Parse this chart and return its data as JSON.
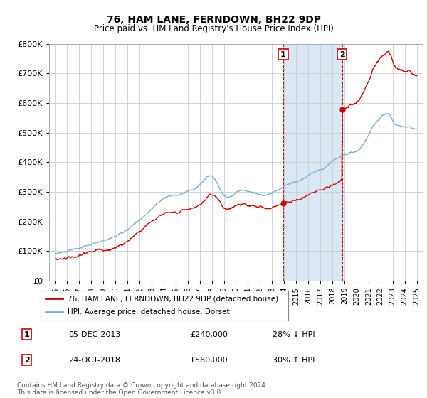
{
  "title": "76, HAM LANE, FERNDOWN, BH22 9DP",
  "subtitle": "Price paid vs. HM Land Registry's House Price Index (HPI)",
  "footer": "Contains HM Land Registry data © Crown copyright and database right 2024.\nThis data is licensed under the Open Government Licence v3.0.",
  "legend_line1": "76, HAM LANE, FERNDOWN, BH22 9DP (detached house)",
  "legend_line2": "HPI: Average price, detached house, Dorset",
  "sale1_date": "05-DEC-2013",
  "sale1_price": 240000,
  "sale1_hpi_text": "28% ↓ HPI",
  "sale1_year": 2013.92,
  "sale2_date": "24-OCT-2018",
  "sale2_price": 560000,
  "sale2_hpi_text": "30% ↑ HPI",
  "sale2_year": 2018.81,
  "hpi_color": "#7aaed6",
  "property_color": "#cc0000",
  "shaded_region_color": "#dae8f5",
  "ylim": [
    0,
    800000
  ],
  "xlim_start": 1994.5,
  "xlim_end": 2025.5
}
